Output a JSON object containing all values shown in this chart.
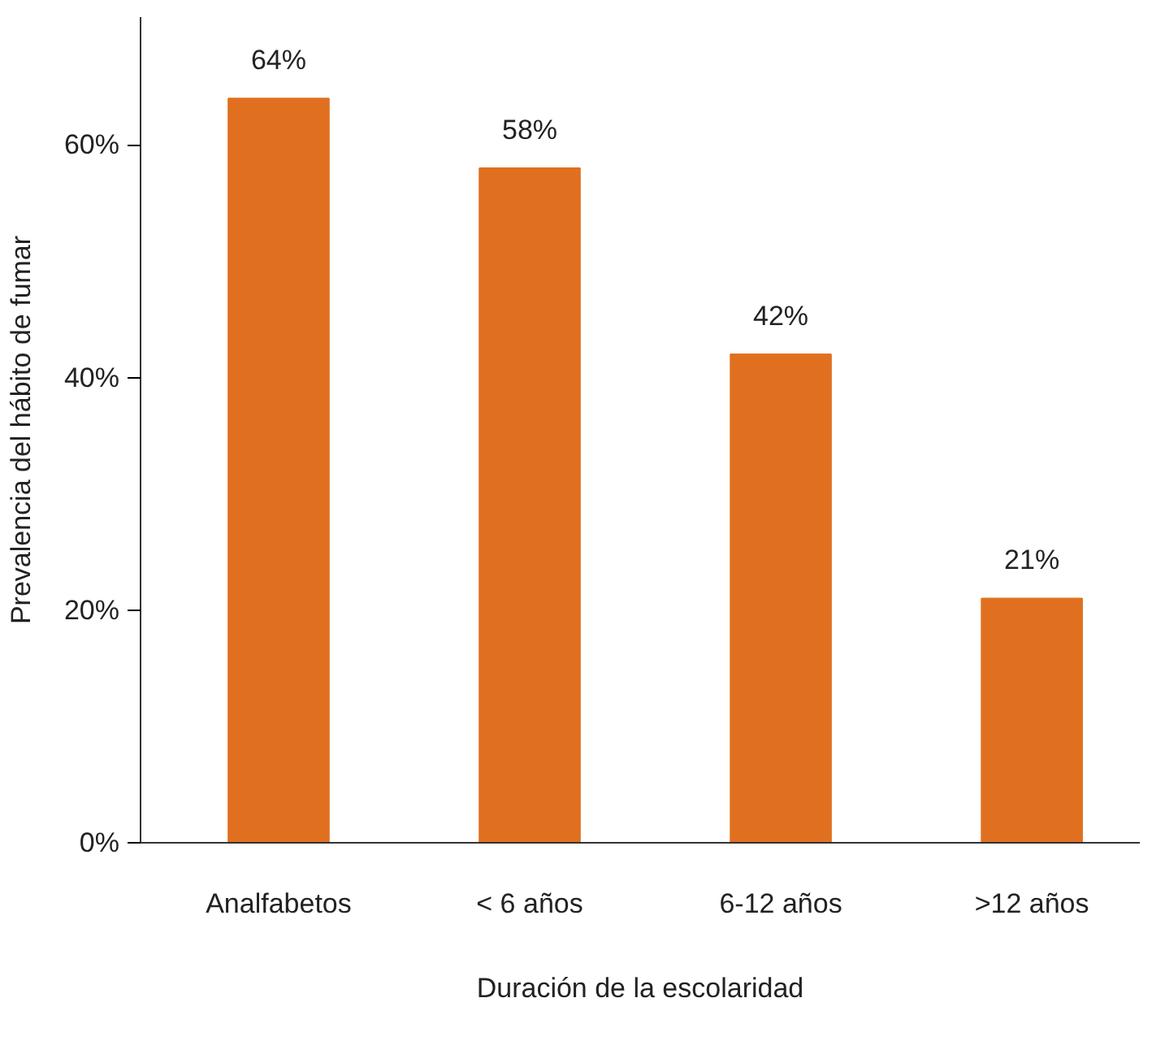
{
  "chart_data": {
    "type": "bar",
    "categories": [
      "Analfabetos",
      "< 6 años",
      "6-12 años",
      ">12 años"
    ],
    "values": [
      64,
      58,
      42,
      21
    ],
    "color": "#e07020",
    "value_labels": [
      "64%",
      "58%",
      "42%",
      "21%"
    ],
    "ylim": [
      0,
      71
    ],
    "yticks": [
      {
        "value": 0,
        "label": "0%"
      },
      {
        "value": 20,
        "label": "20%"
      },
      {
        "value": 40,
        "label": "40%"
      },
      {
        "value": 60,
        "label": "60%"
      }
    ],
    "xlabel": "Duración de la escolaridad",
    "ylabel": "Prevalencia del hábito de fumar",
    "grid": false
  }
}
